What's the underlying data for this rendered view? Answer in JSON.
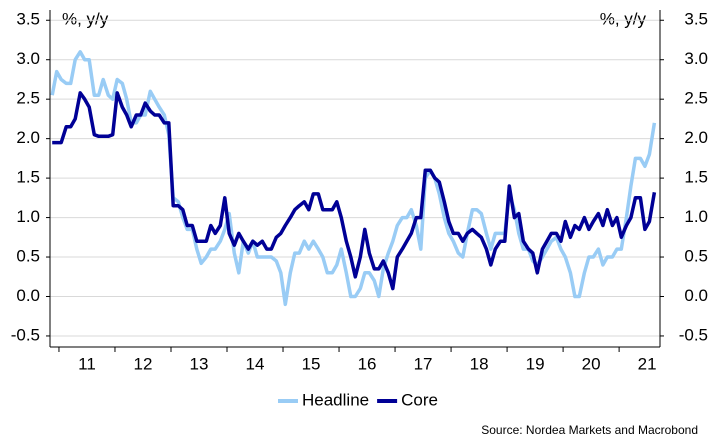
{
  "chart_data": {
    "type": "line",
    "y_unit_left": "%, y/y",
    "y_unit_right": "%, y/y",
    "source": "Source: Nordea Markets and Macrobond",
    "x": [
      2010.88,
      2010.96,
      2011.04,
      2011.13,
      2011.21,
      2011.29,
      2011.38,
      2011.46,
      2011.54,
      2011.63,
      2011.71,
      2011.79,
      2011.88,
      2011.96,
      2012.04,
      2012.13,
      2012.21,
      2012.29,
      2012.38,
      2012.46,
      2012.54,
      2012.63,
      2012.71,
      2012.79,
      2012.88,
      2012.96,
      2013.04,
      2013.13,
      2013.21,
      2013.29,
      2013.38,
      2013.46,
      2013.54,
      2013.63,
      2013.71,
      2013.79,
      2013.88,
      2013.96,
      2014.04,
      2014.13,
      2014.21,
      2014.29,
      2014.38,
      2014.46,
      2014.54,
      2014.63,
      2014.71,
      2014.79,
      2014.88,
      2014.96,
      2015.04,
      2015.13,
      2015.21,
      2015.29,
      2015.38,
      2015.46,
      2015.54,
      2015.63,
      2015.71,
      2015.79,
      2015.88,
      2015.96,
      2016.04,
      2016.13,
      2016.21,
      2016.29,
      2016.38,
      2016.46,
      2016.54,
      2016.63,
      2016.71,
      2016.79,
      2016.88,
      2016.96,
      2017.04,
      2017.13,
      2017.21,
      2017.29,
      2017.38,
      2017.46,
      2017.54,
      2017.63,
      2017.71,
      2017.79,
      2017.88,
      2017.96,
      2018.04,
      2018.13,
      2018.21,
      2018.29,
      2018.38,
      2018.46,
      2018.54,
      2018.63,
      2018.71,
      2018.79,
      2018.88,
      2018.96,
      2019.04,
      2019.13,
      2019.21,
      2019.29,
      2019.38,
      2019.46,
      2019.54,
      2019.63,
      2019.71,
      2019.79,
      2019.88,
      2019.96,
      2020.04,
      2020.13,
      2020.21,
      2020.29,
      2020.38,
      2020.46,
      2020.54,
      2020.63,
      2020.71,
      2020.79,
      2020.88,
      2020.96,
      2021.04,
      2021.13,
      2021.21,
      2021.29,
      2021.38,
      2021.46,
      2021.54,
      2021.63
    ],
    "series": [
      {
        "name": "Headline",
        "color": "#99ccf5",
        "values": [
          2.55,
          2.85,
          2.75,
          2.7,
          2.7,
          3.0,
          3.1,
          3.0,
          3.0,
          2.55,
          2.55,
          2.75,
          2.55,
          2.5,
          2.75,
          2.7,
          2.5,
          2.2,
          2.2,
          2.3,
          2.3,
          2.6,
          2.5,
          2.4,
          2.3,
          2.05,
          1.25,
          1.2,
          1.0,
          0.85,
          0.85,
          0.6,
          0.42,
          0.5,
          0.6,
          0.6,
          0.7,
          0.85,
          1.05,
          0.55,
          0.3,
          0.7,
          0.55,
          0.7,
          0.5,
          0.5,
          0.5,
          0.5,
          0.45,
          0.3,
          -0.1,
          0.3,
          0.55,
          0.55,
          0.7,
          0.6,
          0.7,
          0.6,
          0.5,
          0.3,
          0.3,
          0.4,
          0.6,
          0.3,
          0.0,
          0.0,
          0.1,
          0.3,
          0.3,
          0.2,
          0.0,
          0.35,
          0.55,
          0.7,
          0.9,
          1.0,
          1.0,
          1.1,
          0.9,
          0.6,
          1.5,
          1.6,
          1.5,
          1.3,
          1.0,
          0.8,
          0.7,
          0.55,
          0.5,
          0.8,
          1.1,
          1.1,
          1.05,
          0.8,
          0.6,
          0.8,
          0.8,
          0.8,
          1.3,
          1.1,
          0.8,
          0.6,
          0.6,
          0.45,
          0.4,
          0.5,
          0.6,
          0.7,
          0.75,
          0.6,
          0.5,
          0.3,
          0.0,
          0.0,
          0.3,
          0.5,
          0.5,
          0.6,
          0.4,
          0.5,
          0.5,
          0.6,
          0.6,
          1.0,
          1.4,
          1.75,
          1.75,
          1.65,
          1.8,
          2.2
        ]
      },
      {
        "name": "Core",
        "color": "#000096",
        "values": [
          1.95,
          1.95,
          1.95,
          2.15,
          2.15,
          2.25,
          2.58,
          2.5,
          2.4,
          2.05,
          2.03,
          2.03,
          2.03,
          2.05,
          2.58,
          2.4,
          2.3,
          2.15,
          2.3,
          2.3,
          2.45,
          2.35,
          2.3,
          2.3,
          2.2,
          2.2,
          1.15,
          1.15,
          1.1,
          0.9,
          0.9,
          0.7,
          0.7,
          0.7,
          0.9,
          0.8,
          0.9,
          1.25,
          0.8,
          0.65,
          0.8,
          0.7,
          0.6,
          0.7,
          0.65,
          0.7,
          0.6,
          0.6,
          0.75,
          0.8,
          0.9,
          1.0,
          1.1,
          1.15,
          1.2,
          1.1,
          1.3,
          1.3,
          1.1,
          1.1,
          1.1,
          1.2,
          1.0,
          0.7,
          0.5,
          0.25,
          0.5,
          0.85,
          0.55,
          0.35,
          0.35,
          0.45,
          0.3,
          0.1,
          0.5,
          0.6,
          0.7,
          0.8,
          1.0,
          1.0,
          1.6,
          1.6,
          1.5,
          1.45,
          1.2,
          0.95,
          0.8,
          0.8,
          0.7,
          0.8,
          0.85,
          0.8,
          0.75,
          0.6,
          0.4,
          0.6,
          0.7,
          0.7,
          1.4,
          1.0,
          1.05,
          0.7,
          0.6,
          0.55,
          0.3,
          0.6,
          0.7,
          0.8,
          0.8,
          0.7,
          0.95,
          0.75,
          0.9,
          0.85,
          1.0,
          0.85,
          0.95,
          1.05,
          0.9,
          1.1,
          0.9,
          1.0,
          0.75,
          0.9,
          1.0,
          1.25,
          1.25,
          0.85,
          0.95,
          1.32
        ]
      }
    ],
    "xlim": [
      2010.84,
      2021.73
    ],
    "xticks": [
      {
        "value": 2011.5,
        "label": "11"
      },
      {
        "value": 2012.5,
        "label": "12"
      },
      {
        "value": 2013.5,
        "label": "13"
      },
      {
        "value": 2014.5,
        "label": "14"
      },
      {
        "value": 2015.5,
        "label": "15"
      },
      {
        "value": 2016.5,
        "label": "16"
      },
      {
        "value": 2017.5,
        "label": "17"
      },
      {
        "value": 2018.5,
        "label": "18"
      },
      {
        "value": 2019.5,
        "label": "19"
      },
      {
        "value": 2020.5,
        "label": "20"
      },
      {
        "value": 2021.5,
        "label": "21"
      }
    ],
    "ylim": [
      -0.64,
      3.63
    ],
    "yticks": [
      {
        "value": -0.5,
        "label": "-0.5"
      },
      {
        "value": 0,
        "label": "0.0"
      },
      {
        "value": 0.5,
        "label": "0.5"
      },
      {
        "value": 1,
        "label": "1.0"
      },
      {
        "value": 1.5,
        "label": "1.5"
      },
      {
        "value": 2,
        "label": "2.0"
      },
      {
        "value": 2.5,
        "label": "2.5"
      },
      {
        "value": 3,
        "label": "3.0"
      },
      {
        "value": 3.5,
        "label": "3.5"
      }
    ],
    "y2lim": [
      -0.64,
      3.63
    ],
    "y2ticks": [
      {
        "value": -0.5,
        "label": "-0.5"
      },
      {
        "value": 0,
        "label": "0.0"
      },
      {
        "value": 0.5,
        "label": "0.5"
      },
      {
        "value": 1,
        "label": "1.0"
      },
      {
        "value": 1.5,
        "label": "1.5"
      },
      {
        "value": 2,
        "label": "2.0"
      },
      {
        "value": 2.5,
        "label": "2.5"
      },
      {
        "value": 3,
        "label": "3.0"
      },
      {
        "value": 3.5,
        "label": "3.5"
      }
    ],
    "grid": true,
    "legend": "bottom"
  }
}
